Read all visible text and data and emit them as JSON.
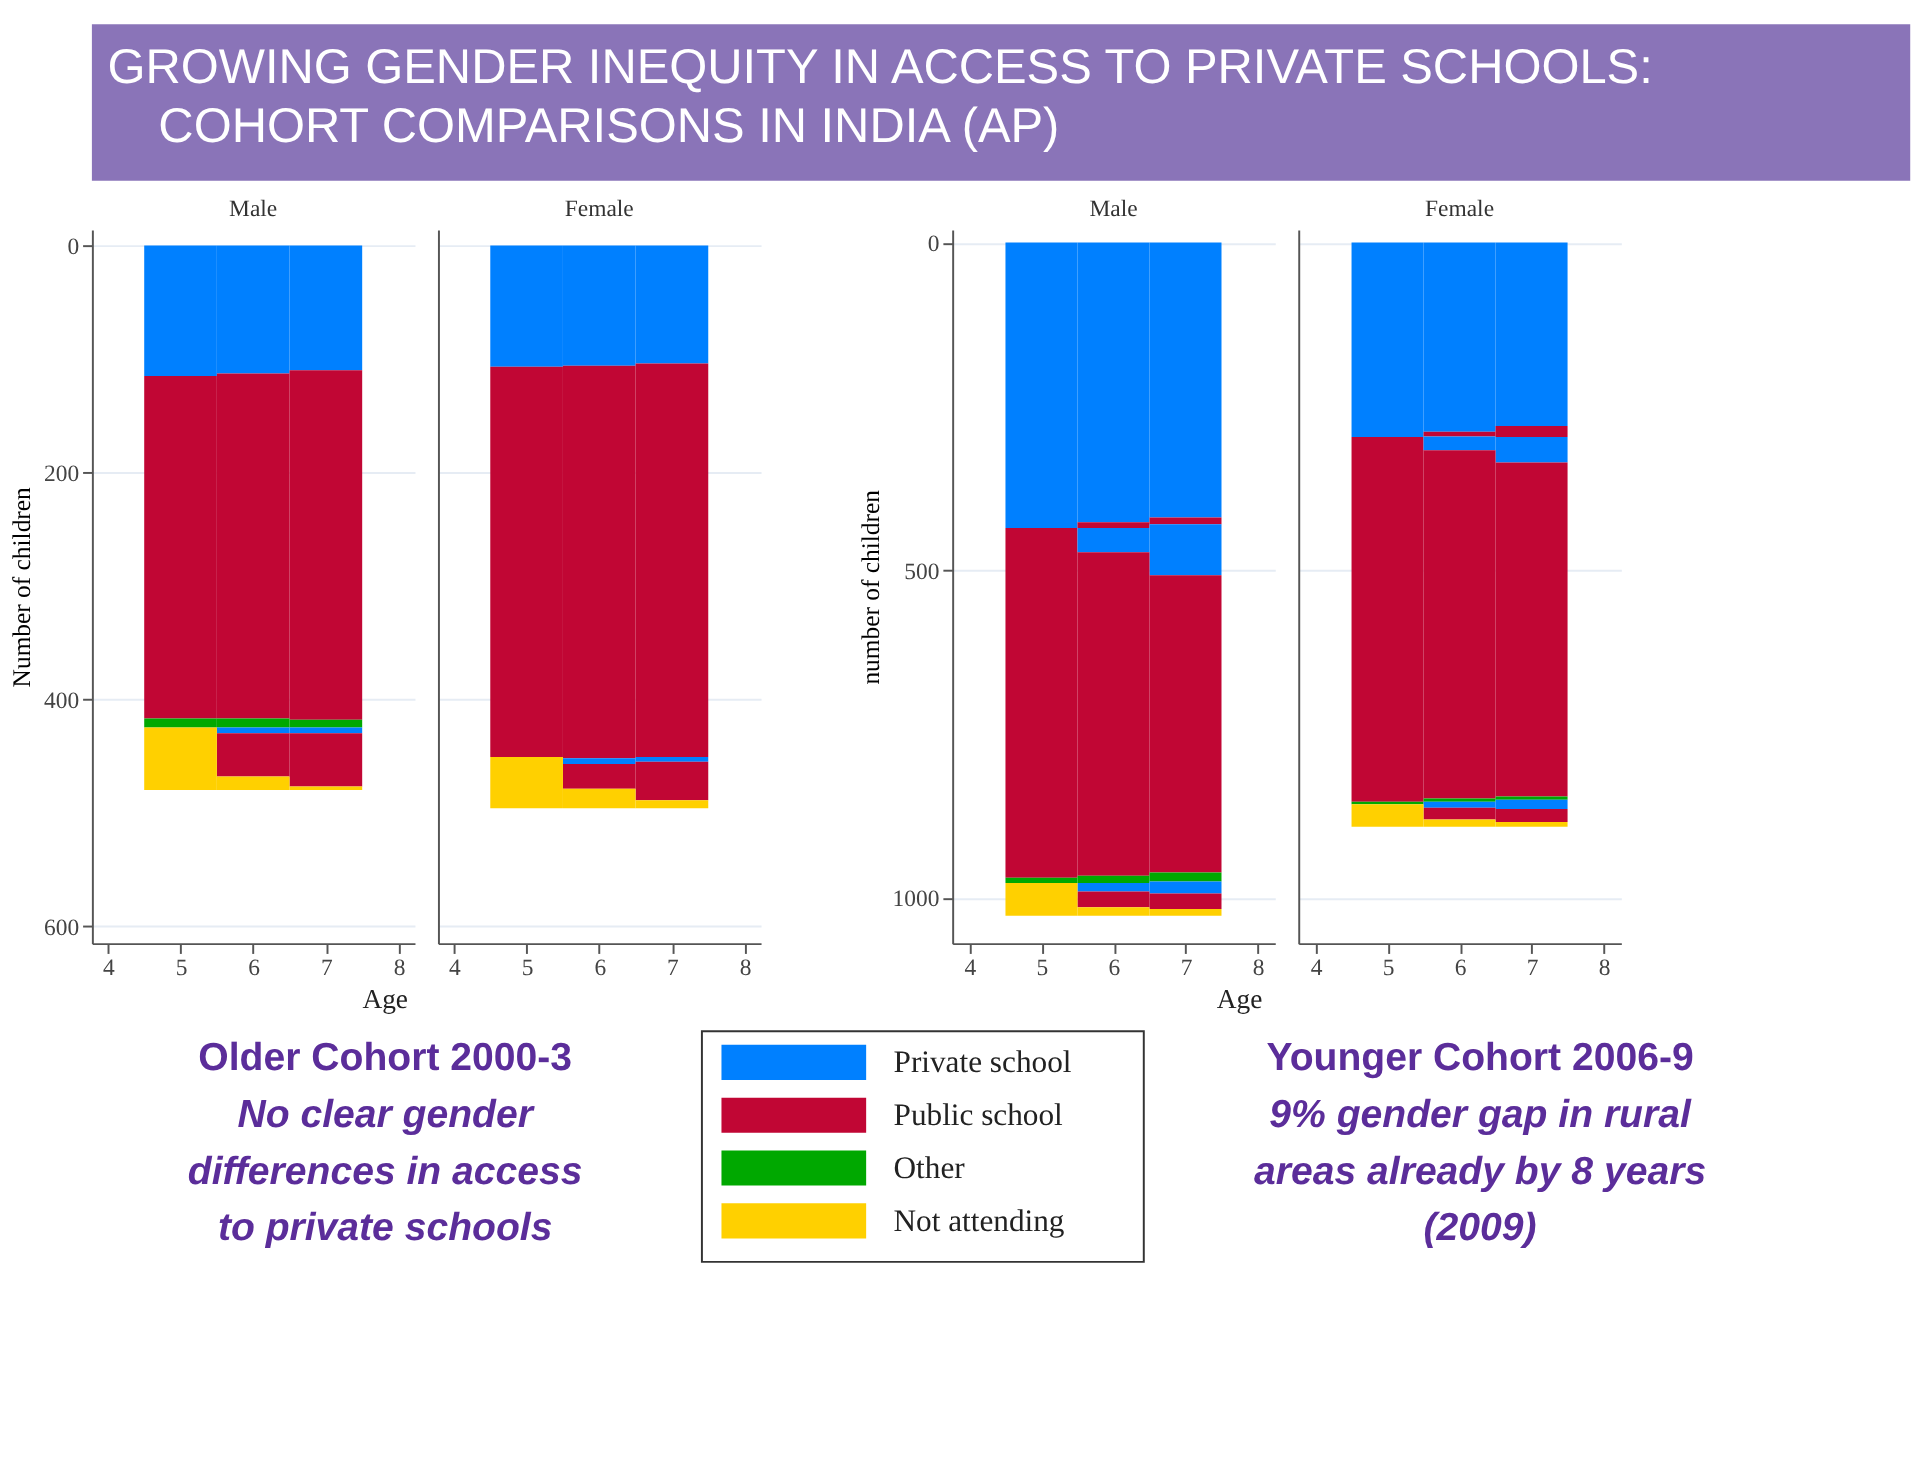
{
  "chart_data": [
    {
      "type": "bar",
      "stacked": true,
      "title": "Male",
      "xlabel": "Age",
      "ylabel": "Number of children",
      "x": [
        5,
        6,
        7
      ],
      "xlim": [
        3.78,
        8.22
      ],
      "xticks": [
        4,
        5,
        6,
        7,
        8
      ],
      "ylim": [
        615,
        -14
      ],
      "yticks": [
        0,
        200,
        400,
        600
      ],
      "grid": "y",
      "legend": "bottom",
      "annotations": [
        "GROWING GENDER INEQUITY IN ACCESS TO PRIVATE SCHOOLS:",
        "COHORT COMPARISONS IN INDIA (AP)",
        "Older Cohort 2000-3",
        "No clear gender",
        "differences in access",
        "to private schools"
      ],
      "series": [
        {
          "name": "Private school",
          "color": "#0080ff",
          "values": [
            115,
            113,
            110
          ]
        },
        {
          "name": "Public school",
          "color": "#c10634",
          "values": [
            302,
            304,
            308
          ]
        },
        {
          "color": "#0080ff",
          "values": [
            0,
            0,
            0
          ]
        },
        {
          "color": "#c10634",
          "values": [
            0,
            0,
            0
          ]
        },
        {
          "name": "Other",
          "color": "#00a800",
          "values": [
            8,
            8,
            7
          ]
        },
        {
          "color": "#0080ff",
          "values": [
            0,
            5,
            5
          ]
        },
        {
          "color": "#c10634",
          "values": [
            0,
            38,
            47
          ]
        },
        {
          "name": "Not attending",
          "color": "#ffd000",
          "values": [
            55,
            12,
            3
          ]
        }
      ]
    },
    {
      "type": "bar",
      "stacked": true,
      "title": "Female",
      "x": [
        5,
        6,
        7
      ],
      "xlim": [
        3.78,
        8.22
      ],
      "xticks": [
        4,
        5,
        6,
        7,
        8
      ],
      "ylim": [
        615,
        -14
      ],
      "yticks": [
        0,
        200,
        400,
        600
      ],
      "grid": "y",
      "tick_labels": "x",
      "series": [
        {
          "color": "#0080ff",
          "values": [
            107,
            106,
            104
          ]
        },
        {
          "color": "#c10634",
          "values": [
            344,
            346,
            347
          ]
        },
        {
          "color": "#0080ff",
          "values": [
            0,
            0,
            0
          ]
        },
        {
          "color": "#c10634",
          "values": [
            0,
            0,
            0
          ]
        },
        {
          "color": "#00a800",
          "values": [
            0,
            0,
            0
          ]
        },
        {
          "color": "#0080ff",
          "values": [
            0,
            5,
            4
          ]
        },
        {
          "color": "#c10634",
          "values": [
            0,
            22,
            34
          ]
        },
        {
          "color": "#ffd000",
          "values": [
            45,
            17,
            7
          ]
        }
      ]
    },
    {
      "type": "bar",
      "stacked": true,
      "title": "Male",
      "xlabel": "Age",
      "ylabel": "number of children",
      "x": [
        5,
        6,
        7
      ],
      "xlim": [
        3.76,
        8.24
      ],
      "xticks": [
        4,
        5,
        6,
        7,
        8
      ],
      "ylim": [
        1070,
        -20
      ],
      "yticks": [
        0,
        500,
        1000
      ],
      "grid": "y",
      "annotations": [
        "Younger Cohort 2006-9",
        "9% gender gap in rural",
        "areas already by 8 years",
        "(2009)"
      ],
      "series": [
        {
          "color": "#0080ff",
          "values": [
            436,
            427,
            420
          ]
        },
        {
          "color": "#c10634",
          "values": [
            534,
            9,
            10
          ]
        },
        {
          "color": "#0080ff",
          "values": [
            0,
            37,
            78
          ]
        },
        {
          "color": "#c10634",
          "values": [
            0,
            494,
            454
          ]
        },
        {
          "color": "#00a800",
          "values": [
            8,
            11,
            14
          ]
        },
        {
          "color": "#0080ff",
          "values": [
            0,
            13,
            18
          ]
        },
        {
          "color": "#c10634",
          "values": [
            0,
            24,
            24
          ]
        },
        {
          "color": "#ffd000",
          "values": [
            50,
            13,
            10
          ]
        }
      ]
    },
    {
      "type": "bar",
      "stacked": true,
      "title": "Female",
      "x": [
        5,
        6,
        7
      ],
      "xlim": [
        3.76,
        8.24
      ],
      "xticks": [
        4,
        5,
        6,
        7,
        8
      ],
      "ylim": [
        1070,
        -20
      ],
      "yticks": [
        0,
        500,
        1000
      ],
      "grid": "y",
      "tick_labels": "x",
      "series": [
        {
          "color": "#0080ff",
          "values": [
            297,
            289,
            280
          ]
        },
        {
          "color": "#c10634",
          "values": [
            557,
            7,
            17
          ]
        },
        {
          "color": "#0080ff",
          "values": [
            0,
            21,
            39
          ]
        },
        {
          "color": "#c10634",
          "values": [
            0,
            532,
            510
          ]
        },
        {
          "color": "#00a800",
          "values": [
            4,
            5,
            5
          ]
        },
        {
          "color": "#0080ff",
          "values": [
            0,
            9,
            14
          ]
        },
        {
          "color": "#c10634",
          "values": [
            0,
            18,
            20
          ]
        },
        {
          "color": "#ffd000",
          "values": [
            34,
            11,
            7
          ]
        }
      ]
    }
  ]
}
